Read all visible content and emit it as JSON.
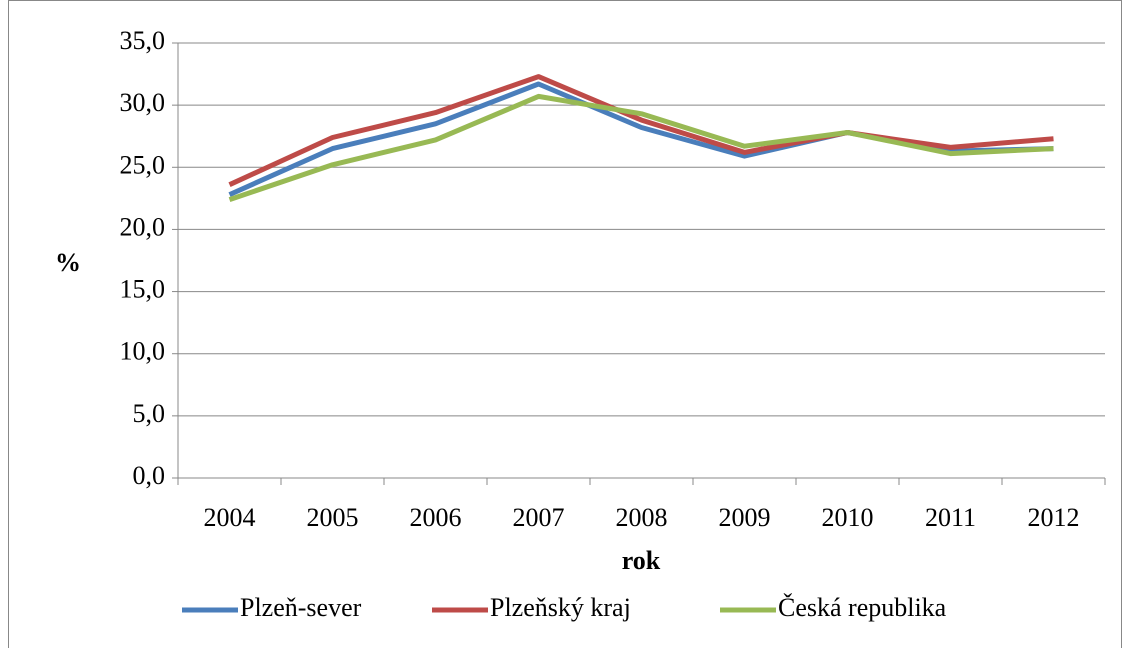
{
  "chart_data": {
    "type": "line",
    "categories": [
      "2004",
      "2005",
      "2006",
      "2007",
      "2008",
      "2009",
      "2010",
      "2011",
      "2012"
    ],
    "series": [
      {
        "name": "Plzeň-sever",
        "color": "#4a7ebb",
        "values": [
          22.8,
          26.5,
          28.5,
          31.7,
          28.2,
          25.9,
          27.8,
          26.3,
          26.5
        ]
      },
      {
        "name": "Plzeňský kraj",
        "color": "#be4b48",
        "values": [
          23.6,
          27.4,
          29.4,
          32.3,
          28.8,
          26.2,
          27.8,
          26.6,
          27.3
        ]
      },
      {
        "name": "Česká republika",
        "color": "#98b954",
        "values": [
          22.4,
          25.2,
          27.2,
          30.7,
          29.3,
          26.7,
          27.8,
          26.1,
          26.5
        ]
      }
    ],
    "y_label": "%",
    "x_label": "rok",
    "ylim": [
      0,
      35
    ],
    "yticks": [
      {
        "value": 0,
        "label": "0,0"
      },
      {
        "value": 5,
        "label": "5,0"
      },
      {
        "value": 10,
        "label": "10,0"
      },
      {
        "value": 15,
        "label": "15,0"
      },
      {
        "value": 20,
        "label": "20,0"
      },
      {
        "value": 25,
        "label": "25,0"
      },
      {
        "value": 30,
        "label": "30,0"
      },
      {
        "value": 35,
        "label": "35,0"
      }
    ],
    "grid": true,
    "legend": "bottom"
  }
}
